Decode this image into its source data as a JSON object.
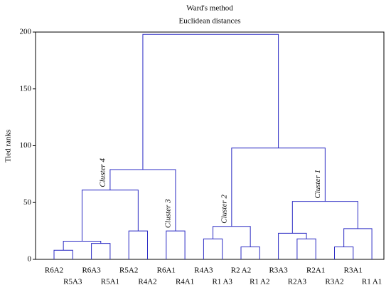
{
  "chart_data": {
    "type": "dendrogram",
    "title": "Ward's method",
    "subtitle": "Euclidean distances",
    "y_label": "Tied ranks",
    "color": "#2b2bc4",
    "ylim": [
      0,
      200
    ],
    "yticks": [
      0,
      50,
      100,
      150,
      200
    ],
    "leaves": [
      "R6A2",
      "R5A3",
      "R6A3",
      "R5A1",
      "R5A2",
      "R4A2",
      "R6A1",
      "R4A1",
      "R4A3",
      "R1 A3",
      "R2 A2",
      "R1 A2",
      "R3A3",
      "R2A3",
      "R2A1",
      "R3A2",
      "R3A1",
      "R1 A1"
    ],
    "merges": [
      {
        "left": 0,
        "right": 1,
        "height": 8
      },
      {
        "left": 2,
        "right": 3,
        "height": 14
      },
      {
        "left": 18,
        "right": 19,
        "height": 16
      },
      {
        "left": 4,
        "right": 5,
        "height": 25
      },
      {
        "left": 20,
        "right": 21,
        "height": 61,
        "label": "Cluster 4"
      },
      {
        "left": 6,
        "right": 7,
        "height": 25,
        "label": "Cluster 3"
      },
      {
        "left": 22,
        "right": 23,
        "height": 79
      },
      {
        "left": 8,
        "right": 9,
        "height": 18
      },
      {
        "left": 10,
        "right": 11,
        "height": 11
      },
      {
        "left": 25,
        "right": 26,
        "height": 29,
        "label": "Cluster 2"
      },
      {
        "left": 13,
        "right": 14,
        "height": 18
      },
      {
        "left": 12,
        "right": 28,
        "height": 23
      },
      {
        "left": 15,
        "right": 16,
        "height": 11
      },
      {
        "left": 30,
        "right": 17,
        "height": 27
      },
      {
        "left": 29,
        "right": 31,
        "height": 51,
        "label": "Cluster 1"
      },
      {
        "left": 27,
        "right": 32,
        "height": 98
      },
      {
        "left": 24,
        "right": 33,
        "height": 198
      }
    ]
  }
}
